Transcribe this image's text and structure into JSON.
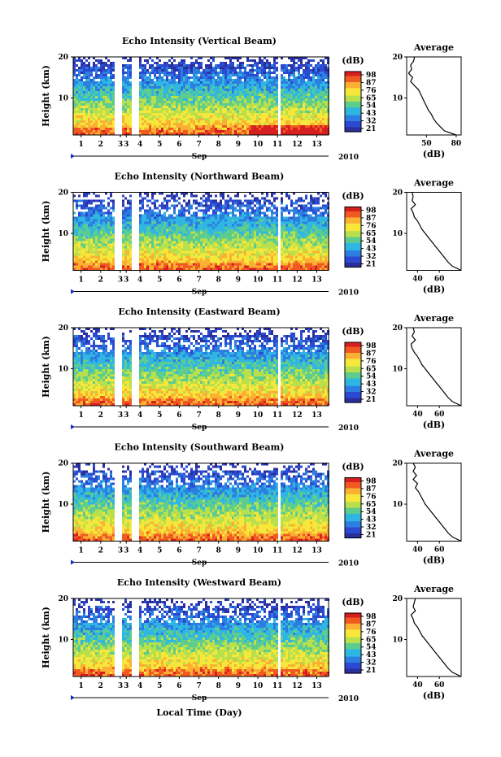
{
  "figure": {
    "bottom_xlabel": "Local Time (Day)"
  },
  "colorbar": {
    "unit": "(dB)",
    "ticks": [
      "98",
      "87",
      "76",
      "65",
      "54",
      "43",
      "32",
      "21"
    ],
    "colors": [
      "#d71f1f",
      "#f05a22",
      "#fbb034",
      "#f6e73a",
      "#b8e04c",
      "#5ccc8f",
      "#2fb6e3",
      "#2c7fe0",
      "#2b49d1",
      "#2a2f9c"
    ]
  },
  "chart_data": [
    {
      "type": "heatmap",
      "title": "Echo Intensity (Vertical Beam)",
      "ylabel": "Height (km)",
      "ylim": [
        1,
        20
      ],
      "yticks": [
        "20",
        "10"
      ],
      "xticks": [
        "1",
        "2",
        "3",
        "3",
        "4",
        "5",
        "6",
        "7",
        "8",
        "9",
        "10",
        "11",
        "12",
        "13"
      ],
      "month_label": "Sep",
      "year_label": "2010",
      "colorbar_range": [
        21,
        98
      ],
      "data_gaps_days": [
        [
          2.7,
          3.0
        ],
        [
          3.5,
          3.9
        ]
      ],
      "profile": {
        "title": "Average",
        "xlabel": "(dB)",
        "xticks": [
          "50",
          "80"
        ],
        "xlim": [
          30,
          85
        ],
        "heights": [
          1,
          2,
          3,
          4,
          5,
          6,
          7,
          8,
          9,
          10,
          11,
          12,
          13,
          14,
          15,
          16,
          17,
          18,
          19,
          20
        ],
        "values": [
          80,
          68,
          64,
          60,
          57,
          55,
          52,
          50,
          48,
          46,
          44,
          42,
          38,
          34,
          36,
          32,
          35,
          34,
          37,
          38
        ]
      }
    },
    {
      "type": "heatmap",
      "title": "Echo Intensity (Northward Beam)",
      "ylabel": "Height (km)",
      "ylim": [
        1,
        20
      ],
      "yticks": [
        "20",
        "10"
      ],
      "xticks": [
        "1",
        "2",
        "3",
        "3",
        "4",
        "5",
        "6",
        "7",
        "8",
        "9",
        "10",
        "11",
        "12",
        "13"
      ],
      "month_label": "Sep",
      "year_label": "2010",
      "colorbar_range": [
        21,
        98
      ],
      "data_gaps_days": [
        [
          2.7,
          3.0
        ],
        [
          3.5,
          3.9
        ]
      ],
      "profile": {
        "title": "Average",
        "xlabel": "(dB)",
        "xticks": [
          "40",
          "60"
        ],
        "xlim": [
          30,
          80
        ],
        "heights": [
          1,
          2,
          3,
          4,
          5,
          6,
          7,
          8,
          9,
          10,
          11,
          12,
          13,
          14,
          15,
          16,
          17,
          18,
          19,
          20
        ],
        "values": [
          80,
          72,
          68,
          65,
          62,
          59,
          56,
          53,
          50,
          47,
          44,
          42,
          40,
          37,
          36,
          34,
          38,
          35,
          36,
          35
        ]
      }
    },
    {
      "type": "heatmap",
      "title": "Echo Intensity (Eastward Beam)",
      "ylabel": "Height (km)",
      "ylim": [
        1,
        20
      ],
      "yticks": [
        "20",
        "10"
      ],
      "xticks": [
        "1",
        "2",
        "3",
        "3",
        "4",
        "5",
        "6",
        "7",
        "8",
        "9",
        "10",
        "11",
        "12",
        "13"
      ],
      "month_label": "Sep",
      "year_label": "2010",
      "colorbar_range": [
        21,
        98
      ],
      "data_gaps_days": [
        [
          2.7,
          3.0
        ],
        [
          3.5,
          3.9
        ]
      ],
      "profile": {
        "title": "Average",
        "xlabel": "(dB)",
        "xticks": [
          "40",
          "60"
        ],
        "xlim": [
          30,
          80
        ],
        "heights": [
          1,
          2,
          3,
          4,
          5,
          6,
          7,
          8,
          9,
          10,
          11,
          12,
          13,
          14,
          15,
          16,
          17,
          18,
          19,
          20
        ],
        "values": [
          80,
          72,
          68,
          65,
          62,
          59,
          56,
          53,
          50,
          47,
          44,
          42,
          40,
          37,
          35,
          34,
          38,
          35,
          37,
          36
        ]
      }
    },
    {
      "type": "heatmap",
      "title": "Echo Intensity (Southward Beam)",
      "ylabel": "Height (km)",
      "ylim": [
        1,
        20
      ],
      "yticks": [
        "20",
        "10"
      ],
      "xticks": [
        "1",
        "2",
        "3",
        "3",
        "4",
        "5",
        "6",
        "7",
        "8",
        "9",
        "10",
        "11",
        "12",
        "13"
      ],
      "month_label": "Sep",
      "year_label": "2010",
      "colorbar_range": [
        21,
        98
      ],
      "data_gaps_days": [
        [
          2.7,
          3.0
        ],
        [
          3.5,
          3.9
        ]
      ],
      "profile": {
        "title": "Average",
        "xlabel": "(dB)",
        "xticks": [
          "40",
          "60"
        ],
        "xlim": [
          30,
          80
        ],
        "heights": [
          1,
          2,
          3,
          4,
          5,
          6,
          7,
          8,
          9,
          10,
          11,
          12,
          13,
          14,
          15,
          16,
          17,
          18,
          19,
          20
        ],
        "values": [
          80,
          72,
          68,
          65,
          62,
          59,
          56,
          53,
          50,
          47,
          45,
          43,
          41,
          38,
          40,
          36,
          39,
          36,
          38,
          36
        ]
      }
    },
    {
      "type": "heatmap",
      "title": "Echo Intensity (Westward Beam)",
      "ylabel": "Height (km)",
      "ylim": [
        1,
        20
      ],
      "yticks": [
        "20",
        "10"
      ],
      "xticks": [
        "1",
        "2",
        "3",
        "3",
        "4",
        "5",
        "6",
        "7",
        "8",
        "9",
        "10",
        "11",
        "12",
        "13"
      ],
      "month_label": "Sep",
      "year_label": "2010",
      "colorbar_range": [
        21,
        98
      ],
      "data_gaps_days": [
        [
          2.7,
          3.0
        ],
        [
          3.5,
          3.9
        ]
      ],
      "profile": {
        "title": "Average",
        "xlabel": "(dB)",
        "xticks": [
          "40",
          "60"
        ],
        "xlim": [
          30,
          80
        ],
        "heights": [
          1,
          2,
          3,
          4,
          5,
          6,
          7,
          8,
          9,
          10,
          11,
          12,
          13,
          14,
          15,
          16,
          17,
          18,
          19,
          20
        ],
        "values": [
          80,
          72,
          68,
          65,
          62,
          59,
          56,
          53,
          50,
          47,
          44,
          42,
          40,
          37,
          36,
          34,
          38,
          36,
          37,
          38
        ]
      }
    }
  ]
}
